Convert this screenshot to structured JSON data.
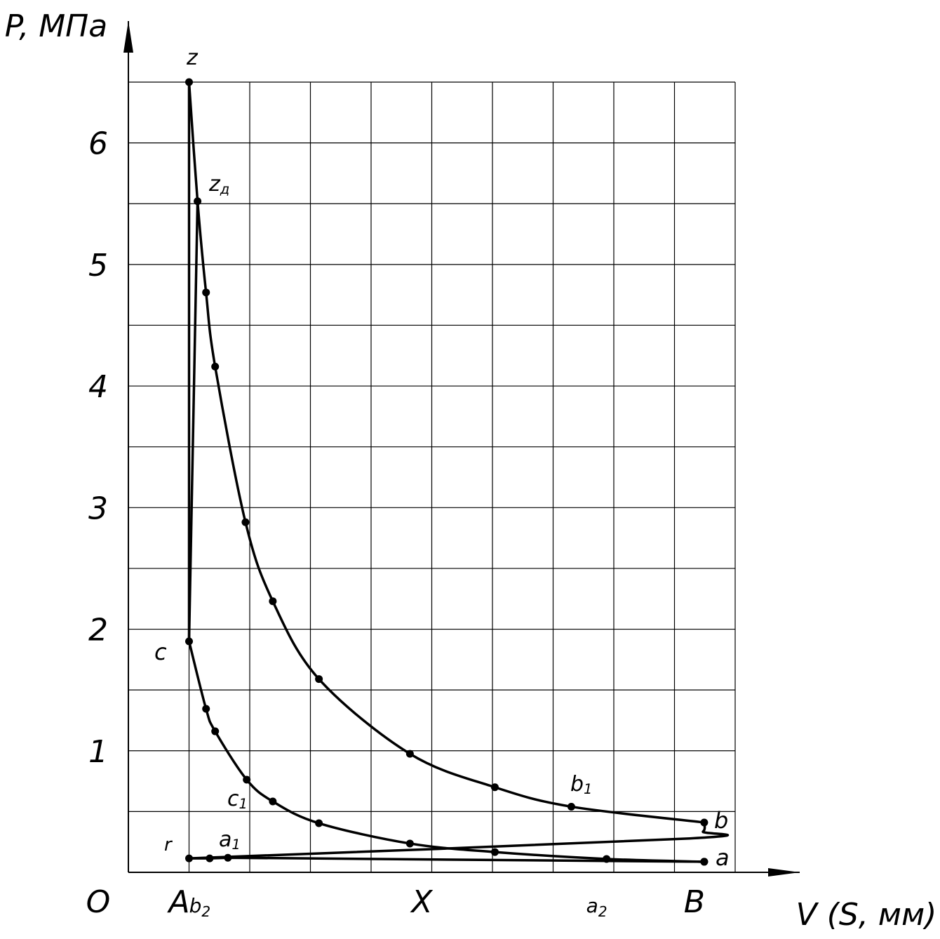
{
  "chart_data": {
    "type": "line",
    "y_axis_label": "P, МПа",
    "x_axis_label": "V (S, мм)",
    "origin_label": "O",
    "xlim": [
      0,
      10
    ],
    "ylim": [
      0,
      6.5
    ],
    "xgrid": [
      0,
      1,
      2,
      3,
      4,
      5,
      6,
      7,
      8,
      9,
      10
    ],
    "ygrid": [
      0.5,
      1,
      1.5,
      2,
      2.5,
      3,
      3.5,
      4,
      4.5,
      5,
      5.5,
      6,
      6.5
    ],
    "yticks": [
      1,
      2,
      3,
      4,
      5,
      6
    ],
    "xticks": [
      {
        "value": 1,
        "label": "A"
      },
      {
        "value": 1.34,
        "label": "b2"
      },
      {
        "value": 5,
        "label": "X"
      },
      {
        "value": 7.88,
        "label": "a2"
      },
      {
        "value": 9.49,
        "label": "B"
      }
    ],
    "series": [
      {
        "color": "#000000",
        "markers": true,
        "smooth": true,
        "x": [
          1,
          1.14,
          1.28,
          1.43,
          1.93,
          2.38,
          3.14,
          4.64,
          6.04,
          7.3,
          9.49
        ],
        "values": [
          6.5,
          5.52,
          4.77,
          4.16,
          2.88,
          2.23,
          1.59,
          0.975,
          0.7,
          0.54,
          0.41
        ]
      },
      {
        "color": "#000000",
        "markers": true,
        "smooth": true,
        "x": [
          9.49,
          7.88,
          6.04,
          4.64,
          3.14,
          2.38,
          1.95,
          1.43,
          1.28,
          1
        ],
        "values": [
          0.087,
          0.11,
          0.167,
          0.237,
          0.404,
          0.583,
          0.762,
          1.16,
          1.345,
          1.9
        ]
      },
      {
        "color": "#000000",
        "markers": false,
        "smooth": false,
        "x": [
          1,
          1
        ],
        "values": [
          1.9,
          6.5
        ]
      },
      {
        "color": "#000000",
        "markers": false,
        "smooth": false,
        "x": [
          1,
          1.14
        ],
        "values": [
          1.9,
          5.52
        ]
      },
      {
        "color": "#000000",
        "markers": false,
        "smooth": true,
        "x": [
          9.49,
          9.47,
          9.18,
          1
        ],
        "values": [
          0.41,
          0.335,
          0.277,
          0.115
        ]
      },
      {
        "color": "#000000",
        "markers": true,
        "smooth": false,
        "x": [
          1,
          1.34,
          1.64,
          9.49
        ],
        "values": [
          0.115,
          0.115,
          0.12,
          0.087
        ]
      }
    ],
    "annotations": [
      {
        "text": "z"
      },
      {
        "text": "z",
        "sub": "д"
      },
      {
        "text": "b",
        "sub": "1"
      },
      {
        "text": "b"
      },
      {
        "text": "a"
      },
      {
        "text": "c"
      },
      {
        "text": "c",
        "sub": "1"
      },
      {
        "text": "r"
      },
      {
        "text": "a",
        "sub": "1"
      }
    ]
  }
}
